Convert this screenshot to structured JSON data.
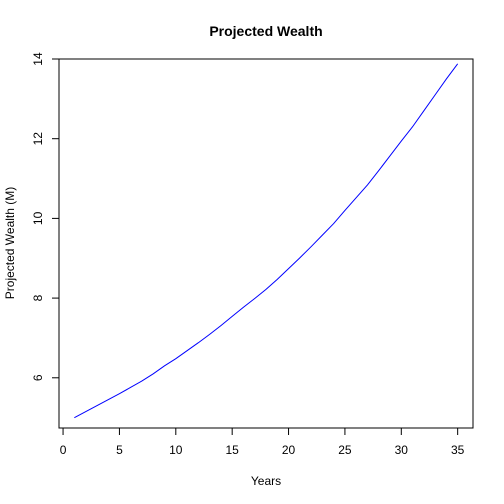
{
  "chart_data": {
    "type": "line",
    "title": "Projected Wealth",
    "xlabel": "Years",
    "ylabel": "Projected Wealth (M)",
    "xlim": [
      -0.36,
      36.36
    ],
    "ylim": [
      4.74,
      14.0
    ],
    "xticks": [
      0,
      5,
      10,
      15,
      20,
      25,
      30,
      35
    ],
    "yticks": [
      6,
      8,
      10,
      12,
      14
    ],
    "grid": false,
    "series": [
      {
        "color": "#0000ff",
        "x": [
          1,
          2,
          3,
          4,
          5,
          6,
          7,
          8,
          9,
          10,
          11,
          12,
          13,
          14,
          15,
          16,
          17,
          18,
          19,
          20,
          21,
          22,
          23,
          24,
          25,
          26,
          27,
          28,
          29,
          30,
          31,
          32,
          33,
          34,
          35
        ],
        "y": [
          5.0,
          5.15,
          5.3,
          5.45,
          5.6,
          5.76,
          5.92,
          6.1,
          6.3,
          6.48,
          6.68,
          6.88,
          7.09,
          7.31,
          7.54,
          7.77,
          7.99,
          8.22,
          8.47,
          8.74,
          9.01,
          9.29,
          9.58,
          9.87,
          10.2,
          10.52,
          10.84,
          11.2,
          11.57,
          11.94,
          12.3,
          12.7,
          13.1,
          13.5,
          13.88
        ]
      }
    ]
  }
}
